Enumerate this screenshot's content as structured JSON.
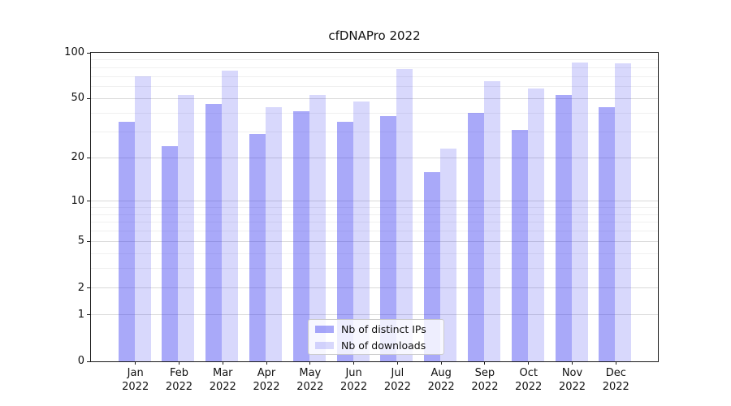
{
  "title": "cfDNAPro 2022",
  "legend": {
    "position": "lower center",
    "items": [
      {
        "label": "Nb of distinct IPs",
        "color": "rgba(40,40,240,0.4)"
      },
      {
        "label": "Nb of downloads",
        "color": "rgba(40,40,240,0.18)"
      }
    ]
  },
  "colors": {
    "bar_distinct_ips": "rgba(40,40,240,0.4)",
    "bar_downloads": "rgba(40,40,240,0.18)",
    "grid_major": "#dadada",
    "grid_minor": "#f0f0f0",
    "spine": "#1a1a1a",
    "legend_border": "#cccccc",
    "background": "#ffffff"
  },
  "chart_data": {
    "type": "bar",
    "title": "cfDNAPro 2022",
    "categories": [
      "Jan 2022",
      "Feb 2022",
      "Mar 2022",
      "Apr 2022",
      "May 2022",
      "Jun 2022",
      "Jul 2022",
      "Aug 2022",
      "Sep 2022",
      "Oct 2022",
      "Nov 2022",
      "Dec 2022"
    ],
    "series": [
      {
        "name": "Nb of distinct IPs",
        "color": "rgba(40,40,240,0.4)",
        "values": [
          35,
          24,
          46,
          29,
          41,
          35,
          38,
          16,
          40,
          31,
          53,
          44
        ]
      },
      {
        "name": "Nb of downloads",
        "color": "rgba(40,40,240,0.18)",
        "values": [
          70,
          53,
          76,
          44,
          53,
          48,
          78,
          23,
          65,
          58,
          86,
          85
        ]
      }
    ],
    "xlabel": "",
    "ylabel": "",
    "yscale": "log1p",
    "ylim": [
      0,
      100
    ],
    "y_ticks": [
      0,
      1,
      2,
      5,
      10,
      20,
      50,
      100
    ],
    "y_minor_gridlines": [
      3,
      4,
      6,
      7,
      8,
      9,
      30,
      40,
      60,
      70,
      80,
      90
    ],
    "grid": true,
    "legend_position": "lower center"
  }
}
